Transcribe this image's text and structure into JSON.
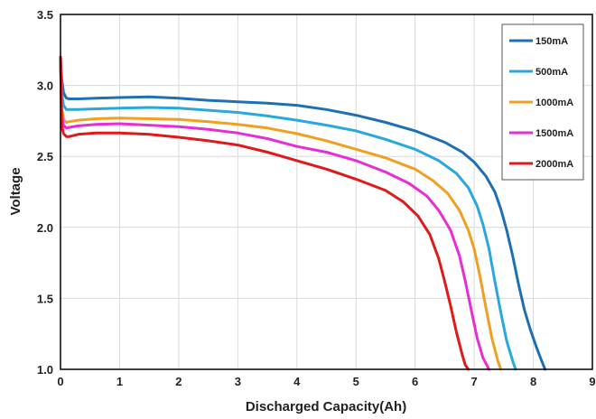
{
  "chart_data": {
    "type": "line",
    "title": "",
    "xlabel": "Discharged Capacity(Ah)",
    "ylabel": "Voltage",
    "xlim": [
      0,
      9
    ],
    "ylim": [
      1.0,
      3.5
    ],
    "x_ticks": [
      "0",
      "1",
      "2",
      "3",
      "4",
      "5",
      "6",
      "7",
      "8",
      "9"
    ],
    "y_ticks": [
      "1.0",
      "1.5",
      "2.0",
      "2.5",
      "3.0",
      "3.5"
    ],
    "grid": true,
    "legend_position": "top-right",
    "series": [
      {
        "name": "150mA",
        "color": "#1f6fb5",
        "x": [
          0,
          0.02,
          0.05,
          0.1,
          0.15,
          0.3,
          0.6,
          1.0,
          1.5,
          2.0,
          2.5,
          3.0,
          3.5,
          4.0,
          4.5,
          5.0,
          5.5,
          6.0,
          6.5,
          6.8,
          7.0,
          7.2,
          7.35,
          7.45,
          7.55,
          7.65,
          7.75,
          7.85,
          7.95,
          8.05,
          8.15,
          8.2
        ],
        "y": [
          3.2,
          3.05,
          2.95,
          2.91,
          2.905,
          2.905,
          2.91,
          2.915,
          2.92,
          2.91,
          2.895,
          2.885,
          2.875,
          2.86,
          2.83,
          2.79,
          2.74,
          2.68,
          2.6,
          2.53,
          2.46,
          2.36,
          2.25,
          2.13,
          1.98,
          1.8,
          1.6,
          1.42,
          1.28,
          1.16,
          1.05,
          1.0
        ]
      },
      {
        "name": "500mA",
        "color": "#29a8e0",
        "x": [
          0,
          0.02,
          0.05,
          0.1,
          0.15,
          0.3,
          0.6,
          1.0,
          1.5,
          2.0,
          2.5,
          3.0,
          3.5,
          4.0,
          4.5,
          5.0,
          5.5,
          6.0,
          6.4,
          6.7,
          6.9,
          7.05,
          7.15,
          7.25,
          7.35,
          7.45,
          7.55,
          7.65,
          7.7
        ],
        "y": [
          3.15,
          2.95,
          2.86,
          2.83,
          2.83,
          2.83,
          2.835,
          2.84,
          2.845,
          2.84,
          2.825,
          2.81,
          2.785,
          2.755,
          2.72,
          2.68,
          2.62,
          2.55,
          2.47,
          2.38,
          2.28,
          2.15,
          2.02,
          1.85,
          1.62,
          1.4,
          1.2,
          1.06,
          1.0
        ]
      },
      {
        "name": "1000mA",
        "color": "#f0a020",
        "x": [
          0,
          0.02,
          0.05,
          0.1,
          0.15,
          0.3,
          0.6,
          1.0,
          1.5,
          2.0,
          2.5,
          3.0,
          3.5,
          4.0,
          4.5,
          5.0,
          5.5,
          6.0,
          6.3,
          6.55,
          6.75,
          6.9,
          7.0,
          7.1,
          7.2,
          7.3,
          7.4,
          7.45
        ],
        "y": [
          3.2,
          2.85,
          2.76,
          2.74,
          2.745,
          2.755,
          2.765,
          2.77,
          2.765,
          2.76,
          2.745,
          2.725,
          2.7,
          2.66,
          2.61,
          2.55,
          2.49,
          2.41,
          2.33,
          2.24,
          2.12,
          1.98,
          1.85,
          1.65,
          1.43,
          1.22,
          1.06,
          1.0
        ]
      },
      {
        "name": "1500mA",
        "color": "#e62ed2",
        "x": [
          0,
          0.02,
          0.05,
          0.1,
          0.15,
          0.3,
          0.6,
          1.0,
          1.5,
          2.0,
          2.5,
          3.0,
          3.5,
          4.0,
          4.5,
          5.0,
          5.5,
          5.9,
          6.2,
          6.4,
          6.6,
          6.75,
          6.85,
          6.95,
          7.05,
          7.15,
          7.25
        ],
        "y": [
          3.2,
          2.8,
          2.72,
          2.7,
          2.705,
          2.715,
          2.725,
          2.73,
          2.72,
          2.71,
          2.69,
          2.665,
          2.625,
          2.57,
          2.53,
          2.47,
          2.39,
          2.31,
          2.22,
          2.12,
          1.98,
          1.8,
          1.62,
          1.42,
          1.22,
          1.08,
          1.0
        ]
      },
      {
        "name": "2000mA",
        "color": "#e0191b",
        "x": [
          0,
          0.02,
          0.05,
          0.1,
          0.15,
          0.3,
          0.6,
          1.0,
          1.5,
          2.0,
          2.5,
          3.0,
          3.5,
          4.0,
          4.5,
          5.0,
          5.5,
          5.8,
          6.05,
          6.25,
          6.4,
          6.5,
          6.6,
          6.7,
          6.8,
          6.85,
          6.9
        ],
        "y": [
          3.2,
          2.72,
          2.66,
          2.64,
          2.64,
          2.655,
          2.665,
          2.665,
          2.655,
          2.635,
          2.61,
          2.58,
          2.53,
          2.47,
          2.41,
          2.34,
          2.26,
          2.18,
          2.08,
          1.95,
          1.78,
          1.62,
          1.45,
          1.26,
          1.1,
          1.03,
          1.0
        ]
      }
    ]
  }
}
